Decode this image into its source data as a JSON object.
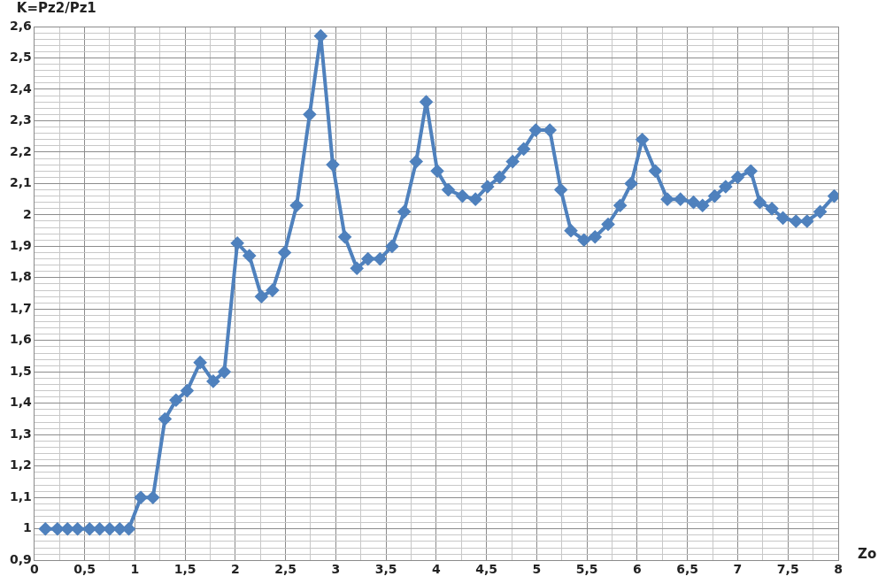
{
  "chart_data": {
    "type": "line",
    "ylabel": "K=Pz2/Pz1",
    "xlabel": "Zo",
    "color": "#4f81bd",
    "marker": "diamond",
    "line_style": "solid",
    "grid": true,
    "legend": false,
    "x": [
      0.11,
      0.23,
      0.33,
      0.43,
      0.55,
      0.65,
      0.75,
      0.85,
      0.94,
      1.06,
      1.18,
      1.3,
      1.41,
      1.52,
      1.65,
      1.78,
      1.89,
      2.02,
      2.14,
      2.26,
      2.37,
      2.49,
      2.61,
      2.74,
      2.85,
      2.97,
      3.09,
      3.21,
      3.32,
      3.44,
      3.56,
      3.68,
      3.8,
      3.9,
      4.01,
      4.12,
      4.26,
      4.39,
      4.51,
      4.63,
      4.76,
      4.87,
      4.99,
      5.13,
      5.24,
      5.34,
      5.47,
      5.58,
      5.71,
      5.83,
      5.94,
      6.05,
      6.18,
      6.3,
      6.43,
      6.56,
      6.65,
      6.77,
      6.88,
      7.0,
      7.13,
      7.22,
      7.34,
      7.45,
      7.58,
      7.69,
      7.82,
      7.96
    ],
    "values": [
      1.0,
      1.0,
      1.0,
      1.0,
      1.0,
      1.0,
      1.0,
      1.0,
      1.0,
      1.1,
      1.1,
      1.35,
      1.41,
      1.44,
      1.53,
      1.47,
      1.5,
      1.91,
      1.87,
      1.74,
      1.76,
      1.88,
      2.03,
      2.32,
      2.57,
      2.16,
      1.93,
      1.83,
      1.86,
      1.86,
      1.9,
      2.01,
      2.17,
      2.36,
      2.14,
      2.08,
      2.06,
      2.05,
      2.09,
      2.12,
      2.17,
      2.21,
      2.27,
      2.27,
      2.08,
      1.95,
      1.92,
      1.93,
      1.97,
      2.03,
      2.1,
      2.24,
      2.14,
      2.05,
      2.05,
      2.04,
      2.03,
      2.06,
      2.09,
      2.12,
      2.14,
      2.04,
      2.02,
      1.99,
      1.98,
      1.98,
      2.01,
      2.06
    ],
    "xlim": [
      0,
      8
    ],
    "xticks": [
      0,
      {
        "value": 0.25,
        "label": null
      },
      {
        "value": 0.5,
        "label": "0,5"
      },
      {
        "value": 0.75,
        "label": null
      },
      1,
      {
        "value": 1.25,
        "label": null
      },
      {
        "value": 1.5,
        "label": "1,5"
      },
      {
        "value": 1.75,
        "label": null
      },
      2,
      {
        "value": 2.25,
        "label": null
      },
      {
        "value": 2.5,
        "label": "2,5"
      },
      {
        "value": 2.75,
        "label": null
      },
      3,
      {
        "value": 3.25,
        "label": null
      },
      {
        "value": 3.5,
        "label": "3,5"
      },
      {
        "value": 3.75,
        "label": null
      },
      4,
      {
        "value": 4.25,
        "label": null
      },
      {
        "value": 4.5,
        "label": "4,5"
      },
      {
        "value": 4.75,
        "label": null
      },
      5,
      {
        "value": 5.25,
        "label": null
      },
      {
        "value": 5.5,
        "label": "5,5"
      },
      {
        "value": 5.75,
        "label": null
      },
      6,
      {
        "value": 6.25,
        "label": null
      },
      {
        "value": 6.5,
        "label": "6,5"
      },
      {
        "value": 6.75,
        "label": null
      },
      7,
      {
        "value": 7.25,
        "label": null
      },
      {
        "value": 7.5,
        "label": "7,5"
      },
      {
        "value": 7.75,
        "label": null
      },
      8
    ],
    "ylim": [
      0.9,
      2.6
    ],
    "yticks": [
      {
        "value": 0.9,
        "label": "0,9"
      },
      {
        "value": 0.92,
        "label": null
      },
      {
        "value": 0.94,
        "label": null
      },
      {
        "value": 0.96,
        "label": null
      },
      {
        "value": 0.98,
        "label": null
      },
      1,
      {
        "value": 1.02,
        "label": null
      },
      {
        "value": 1.04,
        "label": null
      },
      {
        "value": 1.06,
        "label": null
      },
      {
        "value": 1.08,
        "label": null
      },
      {
        "value": 1.1,
        "label": "1,1"
      },
      {
        "value": 1.12,
        "label": null
      },
      {
        "value": 1.14,
        "label": null
      },
      {
        "value": 1.16,
        "label": null
      },
      {
        "value": 1.18,
        "label": null
      },
      {
        "value": 1.2,
        "label": "1,2"
      },
      {
        "value": 1.22,
        "label": null
      },
      {
        "value": 1.24,
        "label": null
      },
      {
        "value": 1.26,
        "label": null
      },
      {
        "value": 1.28,
        "label": null
      },
      {
        "value": 1.3,
        "label": "1,3"
      },
      {
        "value": 1.32,
        "label": null
      },
      {
        "value": 1.34,
        "label": null
      },
      {
        "value": 1.36,
        "label": null
      },
      {
        "value": 1.38,
        "label": null
      },
      {
        "value": 1.4,
        "label": "1,4"
      },
      {
        "value": 1.42,
        "label": null
      },
      {
        "value": 1.44,
        "label": null
      },
      {
        "value": 1.46,
        "label": null
      },
      {
        "value": 1.48,
        "label": null
      },
      {
        "value": 1.5,
        "label": "1,5"
      },
      {
        "value": 1.52,
        "label": null
      },
      {
        "value": 1.54,
        "label": null
      },
      {
        "value": 1.56,
        "label": null
      },
      {
        "value": 1.58,
        "label": null
      },
      {
        "value": 1.6,
        "label": "1,6"
      },
      {
        "value": 1.62,
        "label": null
      },
      {
        "value": 1.64,
        "label": null
      },
      {
        "value": 1.66,
        "label": null
      },
      {
        "value": 1.68,
        "label": null
      },
      {
        "value": 1.7,
        "label": "1,7"
      },
      {
        "value": 1.72,
        "label": null
      },
      {
        "value": 1.74,
        "label": null
      },
      {
        "value": 1.76,
        "label": null
      },
      {
        "value": 1.78,
        "label": null
      },
      {
        "value": 1.8,
        "label": "1,8"
      },
      {
        "value": 1.82,
        "label": null
      },
      {
        "value": 1.84,
        "label": null
      },
      {
        "value": 1.86,
        "label": null
      },
      {
        "value": 1.88,
        "label": null
      },
      {
        "value": 1.9,
        "label": "1,9"
      },
      {
        "value": 1.92,
        "label": null
      },
      {
        "value": 1.94,
        "label": null
      },
      {
        "value": 1.96,
        "label": null
      },
      {
        "value": 1.98,
        "label": null
      },
      2,
      {
        "value": 2.02,
        "label": null
      },
      {
        "value": 2.04,
        "label": null
      },
      {
        "value": 2.06,
        "label": null
      },
      {
        "value": 2.08,
        "label": null
      },
      {
        "value": 2.1,
        "label": "2,1"
      },
      {
        "value": 2.12,
        "label": null
      },
      {
        "value": 2.14,
        "label": null
      },
      {
        "value": 2.16,
        "label": null
      },
      {
        "value": 2.18,
        "label": null
      },
      {
        "value": 2.2,
        "label": "2,2"
      },
      {
        "value": 2.22,
        "label": null
      },
      {
        "value": 2.24,
        "label": null
      },
      {
        "value": 2.26,
        "label": null
      },
      {
        "value": 2.28,
        "label": null
      },
      {
        "value": 2.3,
        "label": "2,3"
      },
      {
        "value": 2.32,
        "label": null
      },
      {
        "value": 2.34,
        "label": null
      },
      {
        "value": 2.36,
        "label": null
      },
      {
        "value": 2.38,
        "label": null
      },
      {
        "value": 2.4,
        "label": "2,4"
      },
      {
        "value": 2.42,
        "label": null
      },
      {
        "value": 2.44,
        "label": null
      },
      {
        "value": 2.46,
        "label": null
      },
      {
        "value": 2.48,
        "label": null
      },
      {
        "value": 2.5,
        "label": "2,5"
      },
      {
        "value": 2.52,
        "label": null
      },
      {
        "value": 2.54,
        "label": null
      },
      {
        "value": 2.56,
        "label": null
      },
      {
        "value": 2.58,
        "label": null
      },
      {
        "value": 2.6,
        "label": "2,6"
      }
    ]
  }
}
